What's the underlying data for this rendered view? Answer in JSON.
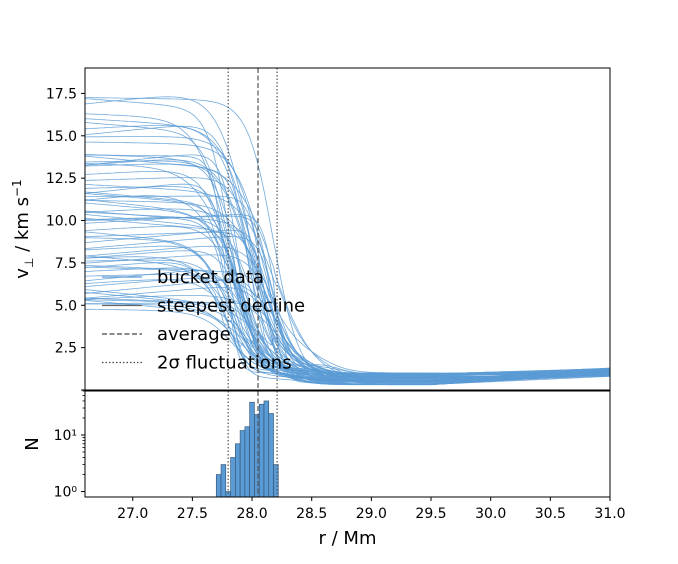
{
  "chart_data": {
    "type": "line",
    "x_range": [
      26.6,
      31.0
    ],
    "x_ticks": [
      "27.0",
      "27.5",
      "28.0",
      "28.5",
      "29.0",
      "29.5",
      "30.0",
      "30.5",
      "31.0"
    ],
    "x_tick_values": [
      27.0,
      27.5,
      28.0,
      28.5,
      29.0,
      29.5,
      30.0,
      30.5,
      31.0
    ],
    "xlabel": "r / Mm",
    "top": {
      "ylabel": "v⊥ / km s⁻¹",
      "ylim": [
        0.0,
        19.0
      ],
      "y_ticks": [
        "2.5",
        "5.0",
        "7.5",
        "10.0",
        "12.5",
        "15.0",
        "17.5"
      ],
      "y_tick_values": [
        2.5,
        5.0,
        7.5,
        10.0,
        12.5,
        15.0,
        17.5
      ],
      "series_count": 70,
      "curve_model": {
        "plateau_range_km_s": [
          4.7,
          17.4
        ],
        "drop_center_range_Mm": [
          27.75,
          28.25
        ],
        "floor_at_29_5_range_km_s": [
          0.3,
          1.0
        ],
        "value_at_31_0_range_km_s": [
          0.8,
          1.3
        ]
      },
      "average_r": 28.05,
      "sigma_lines_r": [
        27.8,
        28.21
      ],
      "legend": [
        {
          "label": "bucket data",
          "style": "solid-blue"
        },
        {
          "label": "steepest decline",
          "style": "solid-gray"
        },
        {
          "label": "average",
          "style": "dashed"
        },
        {
          "label": "2σ fluctuations",
          "style": "dotted"
        }
      ],
      "legend_location": "lower-left"
    },
    "bottom": {
      "type": "histogram",
      "ylabel": "N",
      "yscale": "log",
      "ylim": [
        0.8,
        60
      ],
      "y_ticks": [
        "10⁰",
        "10¹"
      ],
      "y_tick_values": [
        1,
        10
      ],
      "bin_width": 0.04,
      "bins": [
        {
          "x": 27.7,
          "n": 2
        },
        {
          "x": 27.74,
          "n": 3
        },
        {
          "x": 27.78,
          "n": 1
        },
        {
          "x": 27.82,
          "n": 4
        },
        {
          "x": 27.86,
          "n": 7
        },
        {
          "x": 27.9,
          "n": 12
        },
        {
          "x": 27.94,
          "n": 14
        },
        {
          "x": 27.98,
          "n": 38
        },
        {
          "x": 28.02,
          "n": 23
        },
        {
          "x": 28.06,
          "n": 35
        },
        {
          "x": 28.1,
          "n": 40
        },
        {
          "x": 28.14,
          "n": 24
        },
        {
          "x": 28.18,
          "n": 3
        }
      ]
    },
    "colors": {
      "series": "#5b9bd5",
      "hist_fill": "#5b9bd5",
      "average": "#555555",
      "sigma": "#555555"
    }
  }
}
